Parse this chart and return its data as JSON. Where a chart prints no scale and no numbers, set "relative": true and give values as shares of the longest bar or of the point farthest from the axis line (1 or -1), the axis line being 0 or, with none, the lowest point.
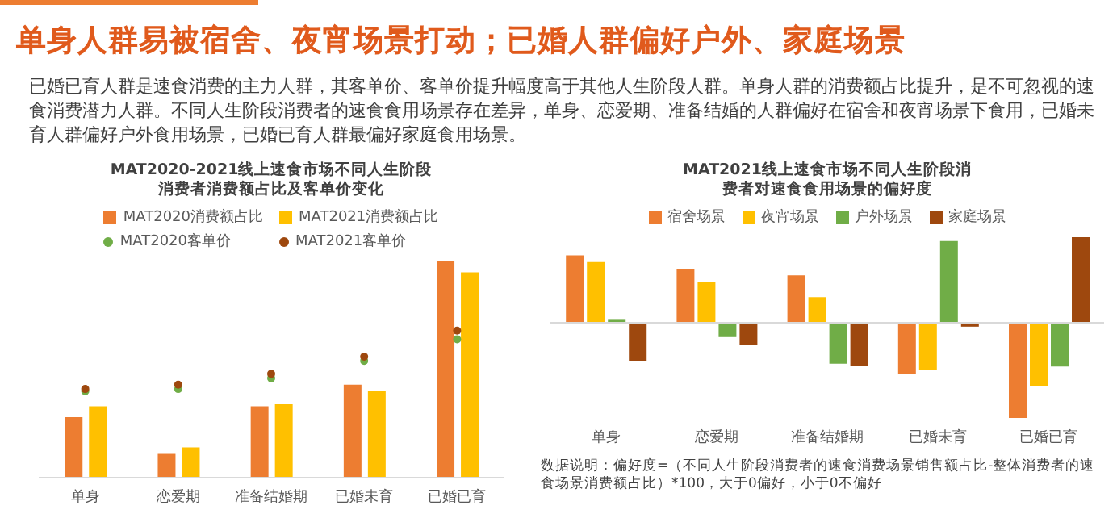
{
  "chart_data": [
    {
      "type": "bar",
      "title": "MAT2020-2021线上速食市场不同人生阶段消费者消费额占比及客单价变化",
      "annotations": [
        "单身人群易被宿舍、夜宵场景打动；已婚人群偏好户外、家庭场景",
        "已婚已育人群是速食消费的主力人群，其客单价、客单价提升幅度高于其他人生阶段人群。单身人群的消费额占比提升，是不可忽视的速食消费潜力人群。不同人生阶段消费者的速食食用场景存在差异，单身、恋爱期、准备结婚的人群偏好在宿舍和夜宵场景下食用，已婚未育人群偏好户外食用场景，已婚已育人群最偏好家庭食用场景。"
      ],
      "relative": true,
      "legend": "top",
      "marker": "circle",
      "categories": [
        "单身",
        "恋爱期",
        "准备结婚期",
        "已婚未育",
        "已婚已育"
      ],
      "series": [
        {
          "name": "MAT2020消费额占比",
          "color": "#ed7d31",
          "values": [
            0.28,
            0.11,
            0.33,
            0.43,
            1
          ]
        },
        {
          "name": "MAT2021消费额占比",
          "color": "#ffc000",
          "values": [
            0.33,
            0.14,
            0.34,
            0.4,
            0.95
          ]
        },
        {
          "name": "MAT2020客单价",
          "type": "scatter",
          "color": "#70ad47",
          "values": [
            0.4,
            0.41,
            0.46,
            0.54,
            0.64
          ]
        },
        {
          "name": "MAT2021客单价",
          "type": "scatter",
          "color": "#9e480e",
          "values": [
            0.41,
            0.43,
            0.48,
            0.56,
            0.68
          ]
        }
      ]
    },
    {
      "type": "bar",
      "title": "MAT2021线上速食市场不同人生阶段消费者对速食食用场景的偏好度",
      "annotations": [
        "数据说明：偏好度=（不同人生阶段消费者的速食消费场景销售额占比-整体消费者的速食场景消费额占比）*100，大于0偏好，小于0不偏好"
      ],
      "relative": true,
      "legend": "top",
      "categories": [
        "单身",
        "恋爱期",
        "准备结婚期",
        "已婚未育",
        "已婚已育"
      ],
      "series": [
        {
          "name": "宿舍场景",
          "color": "#ed7d31",
          "values": [
            0.71,
            0.57,
            0.5,
            -0.54,
            -1
          ]
        },
        {
          "name": "夜宵场景",
          "color": "#ffc000",
          "values": [
            0.64,
            0.43,
            0.27,
            -0.5,
            -0.67
          ]
        },
        {
          "name": "户外场景",
          "color": "#70ad47",
          "values": [
            0.04,
            -0.15,
            -0.43,
            0.86,
            -0.46
          ]
        },
        {
          "name": "家庭场景",
          "color": "#9e480e",
          "values": [
            -0.4,
            -0.23,
            -0.45,
            -0.04,
            0.9
          ]
        }
      ]
    }
  ]
}
